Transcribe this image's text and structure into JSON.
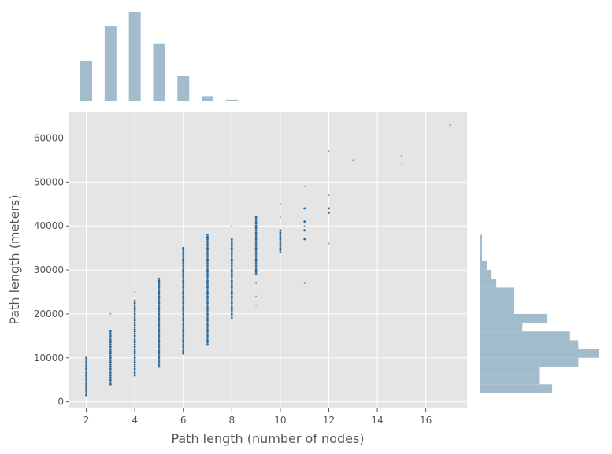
{
  "chart_data": [
    {
      "type": "scatter",
      "role": "joint",
      "xlabel": "Path length (number of nodes)",
      "ylabel": "Path length (meters)",
      "xlim": [
        1.3,
        17.7
      ],
      "ylim": [
        -1500,
        66000
      ],
      "xticks": [
        2,
        4,
        6,
        8,
        10,
        12,
        14,
        16
      ],
      "yticks": [
        0,
        10000,
        20000,
        30000,
        40000,
        50000,
        60000
      ],
      "grid": true,
      "background": "#e5e5e5",
      "colors": {
        "dense": "#2d6a9a",
        "sparse": "#8c9aa8"
      },
      "columns": [
        {
          "x": 2,
          "y_min": 1500,
          "y_max": 10000,
          "step": 500
        },
        {
          "x": 3,
          "y_min": 4000,
          "y_max": 16000,
          "step": 500,
          "extra": [
            20000
          ]
        },
        {
          "x": 4,
          "y_min": 6000,
          "y_max": 23000,
          "step": 500,
          "extra": [
            25000
          ]
        },
        {
          "x": 5,
          "y_min": 8000,
          "y_max": 28000,
          "step": 500
        },
        {
          "x": 6,
          "y_min": 11000,
          "y_max": 35000,
          "step": 500
        },
        {
          "x": 7,
          "y_min": 13000,
          "y_max": 38000,
          "step": 500
        },
        {
          "x": 8,
          "y_min": 19000,
          "y_max": 37000,
          "step": 500,
          "extra": [
            40000
          ]
        },
        {
          "x": 9,
          "y_min": 29000,
          "y_max": 42000,
          "step": 500,
          "extra": [
            22000,
            24000,
            27000
          ]
        },
        {
          "x": 10,
          "y_min": 34000,
          "y_max": 39000,
          "step": 500,
          "extra": [
            42000,
            45000
          ]
        }
      ],
      "points": [
        {
          "x": 11,
          "y": 27000,
          "dense": false
        },
        {
          "x": 11,
          "y": 37000,
          "dense": true
        },
        {
          "x": 11,
          "y": 39000,
          "dense": true
        },
        {
          "x": 11,
          "y": 40000,
          "dense": false
        },
        {
          "x": 11,
          "y": 41000,
          "dense": true
        },
        {
          "x": 11,
          "y": 44000,
          "dense": true
        },
        {
          "x": 11,
          "y": 49000,
          "dense": false
        },
        {
          "x": 12,
          "y": 36000,
          "dense": false
        },
        {
          "x": 12,
          "y": 43000,
          "dense": true
        },
        {
          "x": 12,
          "y": 44000,
          "dense": true
        },
        {
          "x": 12,
          "y": 47000,
          "dense": false
        },
        {
          "x": 12,
          "y": 57000,
          "dense": false
        },
        {
          "x": 13,
          "y": 55000,
          "dense": false
        },
        {
          "x": 15,
          "y": 54000,
          "dense": false
        },
        {
          "x": 15,
          "y": 56000,
          "dense": false
        },
        {
          "x": 17,
          "y": 63000,
          "dense": false
        }
      ]
    },
    {
      "type": "bar",
      "role": "x-marginal-histogram",
      "categories": [
        2,
        3,
        4,
        5,
        6,
        7,
        8
      ],
      "values": [
        0.45,
        0.84,
        1.0,
        0.64,
        0.28,
        0.05,
        0.01
      ],
      "color": "#a3bccb"
    },
    {
      "type": "bar",
      "role": "y-marginal-histogram",
      "orientation": "horizontal",
      "bins": [
        {
          "y0": 2000,
          "y1": 4000,
          "value": 0.61
        },
        {
          "y0": 4000,
          "y1": 6000,
          "value": 0.5
        },
        {
          "y0": 6000,
          "y1": 8000,
          "value": 0.5
        },
        {
          "y0": 8000,
          "y1": 10000,
          "value": 0.83
        },
        {
          "y0": 10000,
          "y1": 12000,
          "value": 1.0
        },
        {
          "y0": 12000,
          "y1": 14000,
          "value": 0.83
        },
        {
          "y0": 14000,
          "y1": 16000,
          "value": 0.76
        },
        {
          "y0": 16000,
          "y1": 18000,
          "value": 0.36
        },
        {
          "y0": 18000,
          "y1": 20000,
          "value": 0.57
        },
        {
          "y0": 20000,
          "y1": 22000,
          "value": 0.29
        },
        {
          "y0": 22000,
          "y1": 24000,
          "value": 0.29
        },
        {
          "y0": 24000,
          "y1": 26000,
          "value": 0.29
        },
        {
          "y0": 26000,
          "y1": 28000,
          "value": 0.14
        },
        {
          "y0": 28000,
          "y1": 30000,
          "value": 0.1
        },
        {
          "y0": 30000,
          "y1": 32000,
          "value": 0.06
        },
        {
          "y0": 32000,
          "y1": 34000,
          "value": 0.02
        },
        {
          "y0": 34000,
          "y1": 36000,
          "value": 0.02
        },
        {
          "y0": 36000,
          "y1": 38000,
          "value": 0.02
        }
      ],
      "color": "#a3bccb"
    }
  ]
}
